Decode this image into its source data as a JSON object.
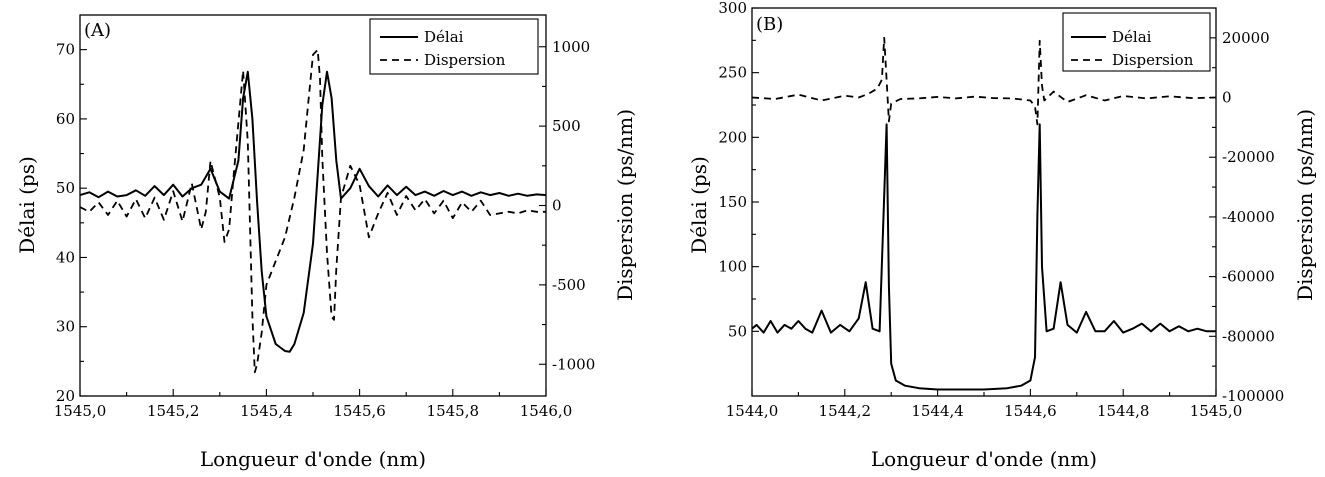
{
  "chart_data": [
    {
      "type": "line",
      "panel_label": "(A)",
      "xlabel": "Longueur d'onde (nm)",
      "ylabel": "Délai (ps)",
      "ylabel_right": "Dispersion (ps/nm)",
      "xlim": [
        1545.0,
        1546.0
      ],
      "ylim": [
        20,
        75
      ],
      "ylim_right": [
        -1200,
        1200
      ],
      "x_ticks": [
        "1545,0",
        "1545,2",
        "1545,4",
        "1545,6",
        "1545,8",
        "1546,0"
      ],
      "y_ticks": [
        "20",
        "30",
        "40",
        "50",
        "60",
        "70"
      ],
      "y_ticks_right": [
        "-1000",
        "-500",
        "0",
        "500",
        "1000"
      ],
      "legend_position": "top-right",
      "series": [
        {
          "name": "Délai",
          "axis": "left",
          "style": "solid",
          "x": [
            1545.0,
            1545.02,
            1545.04,
            1545.06,
            1545.08,
            1545.1,
            1545.12,
            1545.14,
            1545.16,
            1545.18,
            1545.2,
            1545.22,
            1545.24,
            1545.26,
            1545.28,
            1545.3,
            1545.32,
            1545.34,
            1545.35,
            1545.36,
            1545.37,
            1545.38,
            1545.39,
            1545.4,
            1545.42,
            1545.44,
            1545.45,
            1545.46,
            1545.48,
            1545.5,
            1545.51,
            1545.52,
            1545.53,
            1545.54,
            1545.55,
            1545.56,
            1545.58,
            1545.6,
            1545.62,
            1545.64,
            1545.66,
            1545.68,
            1545.7,
            1545.72,
            1545.74,
            1545.76,
            1545.78,
            1545.8,
            1545.82,
            1545.84,
            1545.86,
            1545.88,
            1545.9,
            1545.92,
            1545.94,
            1545.96,
            1545.98,
            1546.0
          ],
          "y": [
            49.0,
            49.4,
            48.7,
            49.5,
            48.8,
            49.0,
            49.7,
            48.9,
            50.3,
            49.0,
            50.5,
            48.8,
            50.0,
            50.5,
            52.8,
            49.5,
            48.5,
            54.0,
            63.0,
            66.8,
            60.0,
            48.0,
            38.0,
            31.5,
            27.5,
            26.5,
            26.4,
            27.5,
            32.0,
            42.0,
            52.0,
            62.0,
            66.8,
            63.0,
            54.0,
            48.5,
            50.0,
            52.8,
            50.3,
            48.8,
            50.4,
            49.0,
            50.2,
            49.0,
            49.5,
            48.9,
            49.6,
            49.0,
            49.5,
            48.9,
            49.4,
            49.0,
            49.3,
            48.9,
            49.2,
            48.9,
            49.1,
            49.0
          ]
        },
        {
          "name": "Dispersion",
          "axis": "right",
          "style": "dashed",
          "x": [
            1545.0,
            1545.02,
            1545.04,
            1545.06,
            1545.08,
            1545.1,
            1545.12,
            1545.14,
            1545.16,
            1545.18,
            1545.2,
            1545.22,
            1545.24,
            1545.26,
            1545.27,
            1545.28,
            1545.3,
            1545.31,
            1545.32,
            1545.33,
            1545.35,
            1545.36,
            1545.37,
            1545.375,
            1545.38,
            1545.39,
            1545.4,
            1545.42,
            1545.44,
            1545.46,
            1545.48,
            1545.49,
            1545.5,
            1545.51,
            1545.515,
            1545.52,
            1545.53,
            1545.54,
            1545.545,
            1545.55,
            1545.56,
            1545.58,
            1545.6,
            1545.62,
            1545.64,
            1545.66,
            1545.68,
            1545.7,
            1545.72,
            1545.74,
            1545.76,
            1545.78,
            1545.8,
            1545.82,
            1545.84,
            1545.86,
            1545.88,
            1545.9,
            1545.92,
            1545.94,
            1545.96,
            1545.98,
            1546.0
          ],
          "y": [
            -10,
            -40,
            20,
            -60,
            30,
            -70,
            40,
            -80,
            50,
            -90,
            90,
            -100,
            140,
            -150,
            -40,
            280,
            50,
            -230,
            -150,
            200,
            850,
            400,
            -700,
            -1050,
            -1000,
            -800,
            -500,
            -350,
            -200,
            50,
            350,
            650,
            950,
            980,
            800,
            300,
            -300,
            -700,
            -720,
            -400,
            50,
            250,
            130,
            -200,
            -50,
            80,
            -60,
            60,
            -30,
            40,
            -50,
            30,
            -80,
            20,
            -40,
            30,
            -60,
            -50,
            -40,
            -50,
            -30,
            -40,
            -40
          ]
        }
      ]
    },
    {
      "type": "line",
      "panel_label": "(B)",
      "xlabel": "Longueur d'onde (nm)",
      "ylabel": "Délai (ps)",
      "ylabel_right": "Dispersion (ps/nm)",
      "xlim": [
        1544.0,
        1545.0
      ],
      "ylim": [
        0,
        300
      ],
      "ylim_right": [
        -100000,
        30000
      ],
      "x_ticks": [
        "1544,0",
        "1544,2",
        "1544,4",
        "1544,6",
        "1544,8",
        "1545,0"
      ],
      "y_ticks": [
        "50",
        "100",
        "150",
        "200",
        "250",
        "300"
      ],
      "y_ticks_right": [
        "-100000",
        "-80000",
        "-60000",
        "-40000",
        "-20000",
        "0",
        "20000"
      ],
      "legend_position": "top-right",
      "series": [
        {
          "name": "Délai",
          "axis": "left",
          "style": "solid",
          "x": [
            1544.0,
            1544.01,
            1544.025,
            1544.04,
            1544.055,
            1544.07,
            1544.085,
            1544.1,
            1544.115,
            1544.13,
            1544.15,
            1544.17,
            1544.19,
            1544.21,
            1544.23,
            1544.245,
            1544.26,
            1544.275,
            1544.285,
            1544.29,
            1544.295,
            1544.3,
            1544.31,
            1544.33,
            1544.36,
            1544.4,
            1544.45,
            1544.5,
            1544.55,
            1544.58,
            1544.6,
            1544.61,
            1544.615,
            1544.62,
            1544.625,
            1544.635,
            1544.65,
            1544.665,
            1544.68,
            1544.7,
            1544.72,
            1544.74,
            1544.76,
            1544.78,
            1544.8,
            1544.82,
            1544.84,
            1544.86,
            1544.88,
            1544.9,
            1544.92,
            1544.94,
            1544.96,
            1544.98,
            1545.0
          ],
          "y": [
            52,
            55,
            49,
            58,
            49,
            55,
            52,
            58,
            52,
            49,
            66,
            49,
            55,
            50,
            60,
            88,
            52,
            50,
            155,
            210,
            85,
            25,
            12,
            8,
            6,
            5,
            5,
            5,
            6,
            8,
            12,
            30,
            140,
            210,
            100,
            50,
            52,
            88,
            55,
            49,
            65,
            50,
            50,
            58,
            49,
            52,
            56,
            50,
            56,
            50,
            54,
            50,
            52,
            50,
            50
          ]
        },
        {
          "name": "Dispersion",
          "axis": "right",
          "style": "dashed",
          "x": [
            1544.0,
            1544.05,
            1544.1,
            1544.15,
            1544.2,
            1544.23,
            1544.25,
            1544.27,
            1544.28,
            1544.285,
            1544.29,
            1544.295,
            1544.3,
            1544.32,
            1544.36,
            1544.4,
            1544.44,
            1544.48,
            1544.52,
            1544.56,
            1544.6,
            1544.61,
            1544.615,
            1544.62,
            1544.625,
            1544.63,
            1544.65,
            1544.68,
            1544.72,
            1544.76,
            1544.8,
            1544.85,
            1544.9,
            1544.95,
            1545.0
          ],
          "y": [
            0,
            -500,
            1000,
            -1000,
            600,
            0,
            1200,
            3000,
            6000,
            20000,
            6000,
            -8000,
            -2000,
            -500,
            -300,
            200,
            -300,
            300,
            -200,
            -300,
            -1000,
            -3000,
            -9000,
            19000,
            4000,
            -1000,
            2000,
            -1500,
            800,
            -1000,
            500,
            -300,
            400,
            -200,
            0
          ]
        }
      ]
    }
  ]
}
